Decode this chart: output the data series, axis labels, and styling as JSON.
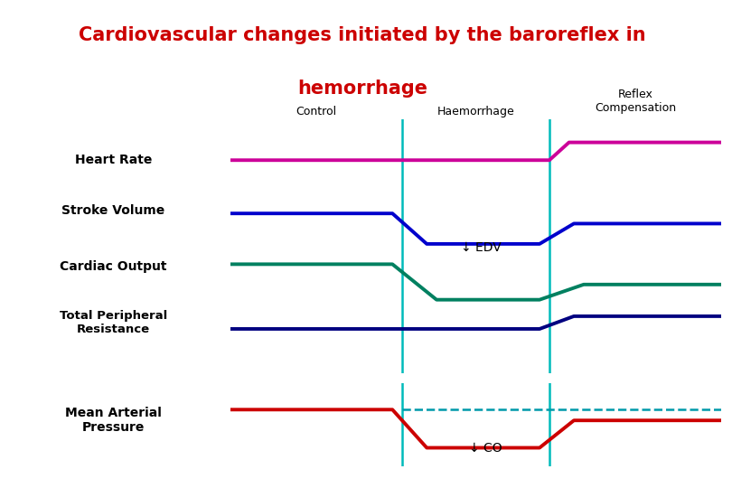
{
  "title_line1": "Cardiovascular changes initiated by the baroreflex in",
  "title_line2": "hemorrhage",
  "title_color": "#cc0000",
  "title_bg_color": "#ffffaa",
  "title_edge_color": "#aaaaaa",
  "col_labels": [
    "Control",
    "Haemorrhage",
    "Reflex\nCompensation"
  ],
  "vline_color": "#00bbbb",
  "row_labels": [
    "Heart Rate",
    "Stroke Volume",
    "Cardiac Output",
    "Total Peripheral Resistance"
  ],
  "map_label": "Mean Arterial Pressure",
  "heart_rate_color": "#cc0099",
  "stroke_volume_color": "#0000cc",
  "cardiac_output_color": "#008060",
  "tpr_color": "#000080",
  "map_color": "#cc0000",
  "map_dashed_color": "#0099aa",
  "background_color": "#ffffff",
  "lw": 2.8,
  "vx1": 3.5,
  "vx2": 6.5,
  "xmax": 10.0
}
